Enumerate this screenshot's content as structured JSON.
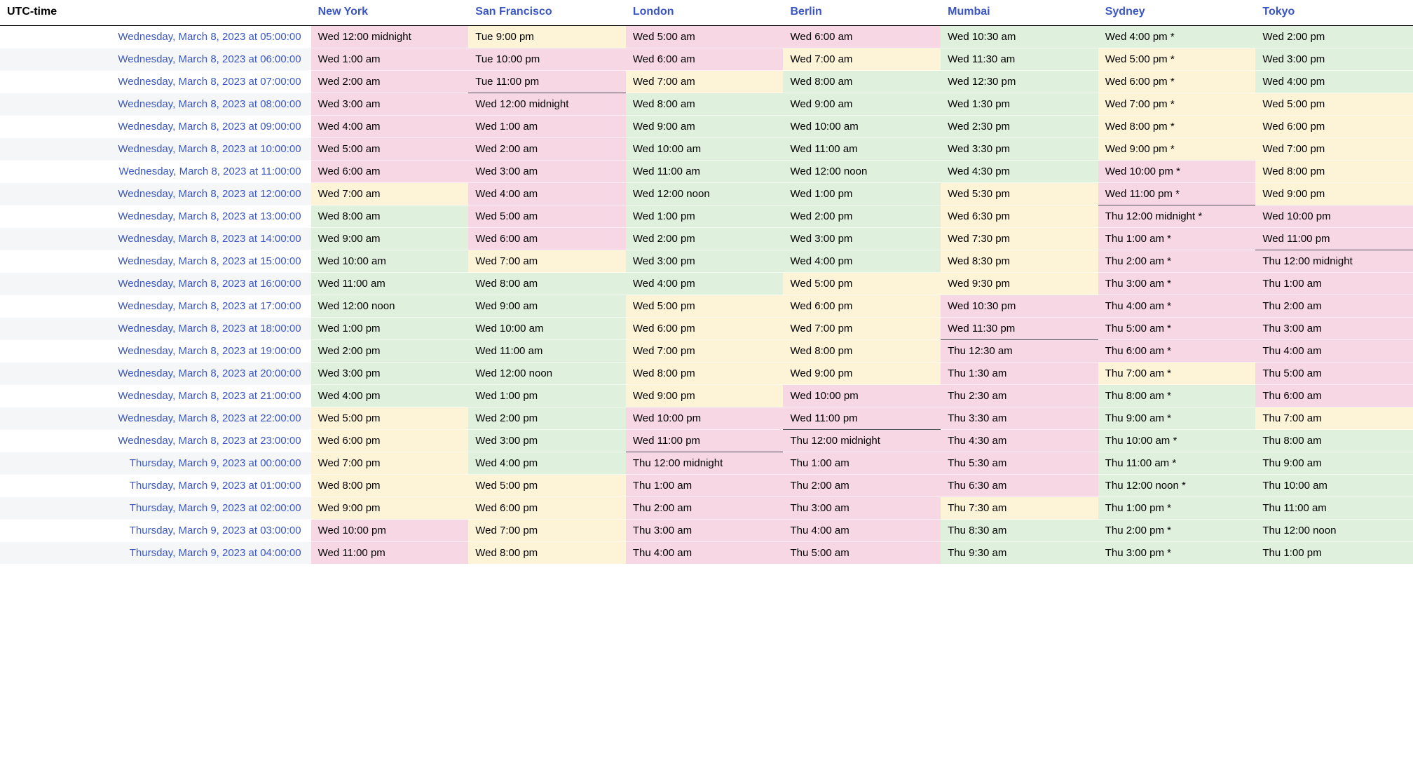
{
  "colors": {
    "pink": "#f7d7e3",
    "cream": "#fdf3d6",
    "green": "#dff0dc",
    "utc_stripe": "#f5f6f8",
    "link": "#3a56c4",
    "header_border": "#000000"
  },
  "header": {
    "utc_label": "UTC-time",
    "cities": [
      "New York",
      "San Francisco",
      "London",
      "Berlin",
      "Mumbai",
      "Sydney",
      "Tokyo"
    ]
  },
  "rows": [
    {
      "utc": "Wednesday, March 8, 2023 at 05:00:00",
      "cells": [
        {
          "text": "Wed 12:00 midnight",
          "color": "pink",
          "midline": true
        },
        {
          "text": "Tue 9:00 pm",
          "color": "cream"
        },
        {
          "text": "Wed 5:00 am",
          "color": "pink"
        },
        {
          "text": "Wed 6:00 am",
          "color": "pink"
        },
        {
          "text": "Wed 10:30 am",
          "color": "green"
        },
        {
          "text": "Wed 4:00 pm *",
          "color": "green"
        },
        {
          "text": "Wed 2:00 pm",
          "color": "green"
        }
      ]
    },
    {
      "utc": "Wednesday, March 8, 2023 at 06:00:00",
      "cells": [
        {
          "text": "Wed 1:00 am",
          "color": "pink"
        },
        {
          "text": "Tue 10:00 pm",
          "color": "pink"
        },
        {
          "text": "Wed 6:00 am",
          "color": "pink"
        },
        {
          "text": "Wed 7:00 am",
          "color": "cream"
        },
        {
          "text": "Wed 11:30 am",
          "color": "green"
        },
        {
          "text": "Wed 5:00 pm *",
          "color": "cream"
        },
        {
          "text": "Wed 3:00 pm",
          "color": "green"
        }
      ]
    },
    {
      "utc": "Wednesday, March 8, 2023 at 07:00:00",
      "cells": [
        {
          "text": "Wed 2:00 am",
          "color": "pink"
        },
        {
          "text": "Tue 11:00 pm",
          "color": "pink"
        },
        {
          "text": "Wed 7:00 am",
          "color": "cream"
        },
        {
          "text": "Wed 8:00 am",
          "color": "green"
        },
        {
          "text": "Wed 12:30 pm",
          "color": "green"
        },
        {
          "text": "Wed 6:00 pm *",
          "color": "cream"
        },
        {
          "text": "Wed 4:00 pm",
          "color": "green"
        }
      ]
    },
    {
      "utc": "Wednesday, March 8, 2023 at 08:00:00",
      "cells": [
        {
          "text": "Wed 3:00 am",
          "color": "pink"
        },
        {
          "text": "Wed 12:00 midnight",
          "color": "pink",
          "midline": true
        },
        {
          "text": "Wed 8:00 am",
          "color": "green"
        },
        {
          "text": "Wed 9:00 am",
          "color": "green"
        },
        {
          "text": "Wed 1:30 pm",
          "color": "green"
        },
        {
          "text": "Wed 7:00 pm *",
          "color": "cream"
        },
        {
          "text": "Wed 5:00 pm",
          "color": "cream"
        }
      ]
    },
    {
      "utc": "Wednesday, March 8, 2023 at 09:00:00",
      "cells": [
        {
          "text": "Wed 4:00 am",
          "color": "pink"
        },
        {
          "text": "Wed 1:00 am",
          "color": "pink"
        },
        {
          "text": "Wed 9:00 am",
          "color": "green"
        },
        {
          "text": "Wed 10:00 am",
          "color": "green"
        },
        {
          "text": "Wed 2:30 pm",
          "color": "green"
        },
        {
          "text": "Wed 8:00 pm *",
          "color": "cream"
        },
        {
          "text": "Wed 6:00 pm",
          "color": "cream"
        }
      ]
    },
    {
      "utc": "Wednesday, March 8, 2023 at 10:00:00",
      "cells": [
        {
          "text": "Wed 5:00 am",
          "color": "pink"
        },
        {
          "text": "Wed 2:00 am",
          "color": "pink"
        },
        {
          "text": "Wed 10:00 am",
          "color": "green"
        },
        {
          "text": "Wed 11:00 am",
          "color": "green"
        },
        {
          "text": "Wed 3:30 pm",
          "color": "green"
        },
        {
          "text": "Wed 9:00 pm *",
          "color": "cream"
        },
        {
          "text": "Wed 7:00 pm",
          "color": "cream"
        }
      ]
    },
    {
      "utc": "Wednesday, March 8, 2023 at 11:00:00",
      "cells": [
        {
          "text": "Wed 6:00 am",
          "color": "pink"
        },
        {
          "text": "Wed 3:00 am",
          "color": "pink"
        },
        {
          "text": "Wed 11:00 am",
          "color": "green"
        },
        {
          "text": "Wed 12:00 noon",
          "color": "green"
        },
        {
          "text": "Wed 4:30 pm",
          "color": "green"
        },
        {
          "text": "Wed 10:00 pm *",
          "color": "pink"
        },
        {
          "text": "Wed 8:00 pm",
          "color": "cream"
        }
      ]
    },
    {
      "utc": "Wednesday, March 8, 2023 at 12:00:00",
      "cells": [
        {
          "text": "Wed 7:00 am",
          "color": "cream"
        },
        {
          "text": "Wed 4:00 am",
          "color": "pink"
        },
        {
          "text": "Wed 12:00 noon",
          "color": "green"
        },
        {
          "text": "Wed 1:00 pm",
          "color": "green"
        },
        {
          "text": "Wed 5:30 pm",
          "color": "cream"
        },
        {
          "text": "Wed 11:00 pm *",
          "color": "pink"
        },
        {
          "text": "Wed 9:00 pm",
          "color": "cream"
        }
      ]
    },
    {
      "utc": "Wednesday, March 8, 2023 at 13:00:00",
      "cells": [
        {
          "text": "Wed 8:00 am",
          "color": "green"
        },
        {
          "text": "Wed 5:00 am",
          "color": "pink"
        },
        {
          "text": "Wed 1:00 pm",
          "color": "green"
        },
        {
          "text": "Wed 2:00 pm",
          "color": "green"
        },
        {
          "text": "Wed 6:30 pm",
          "color": "cream"
        },
        {
          "text": "Thu 12:00 midnight *",
          "color": "pink",
          "midline": true
        },
        {
          "text": "Wed 10:00 pm",
          "color": "pink"
        }
      ]
    },
    {
      "utc": "Wednesday, March 8, 2023 at 14:00:00",
      "cells": [
        {
          "text": "Wed 9:00 am",
          "color": "green"
        },
        {
          "text": "Wed 6:00 am",
          "color": "pink"
        },
        {
          "text": "Wed 2:00 pm",
          "color": "green"
        },
        {
          "text": "Wed 3:00 pm",
          "color": "green"
        },
        {
          "text": "Wed 7:30 pm",
          "color": "cream"
        },
        {
          "text": "Thu 1:00 am *",
          "color": "pink"
        },
        {
          "text": "Wed 11:00 pm",
          "color": "pink"
        }
      ]
    },
    {
      "utc": "Wednesday, March 8, 2023 at 15:00:00",
      "cells": [
        {
          "text": "Wed 10:00 am",
          "color": "green"
        },
        {
          "text": "Wed 7:00 am",
          "color": "cream"
        },
        {
          "text": "Wed 3:00 pm",
          "color": "green"
        },
        {
          "text": "Wed 4:00 pm",
          "color": "green"
        },
        {
          "text": "Wed 8:30 pm",
          "color": "cream"
        },
        {
          "text": "Thu 2:00 am *",
          "color": "pink"
        },
        {
          "text": "Thu 12:00 midnight",
          "color": "pink",
          "midline": true
        }
      ]
    },
    {
      "utc": "Wednesday, March 8, 2023 at 16:00:00",
      "cells": [
        {
          "text": "Wed 11:00 am",
          "color": "green"
        },
        {
          "text": "Wed 8:00 am",
          "color": "green"
        },
        {
          "text": "Wed 4:00 pm",
          "color": "green"
        },
        {
          "text": "Wed 5:00 pm",
          "color": "cream"
        },
        {
          "text": "Wed 9:30 pm",
          "color": "cream"
        },
        {
          "text": "Thu 3:00 am *",
          "color": "pink"
        },
        {
          "text": "Thu 1:00 am",
          "color": "pink"
        }
      ]
    },
    {
      "utc": "Wednesday, March 8, 2023 at 17:00:00",
      "cells": [
        {
          "text": "Wed 12:00 noon",
          "color": "green"
        },
        {
          "text": "Wed 9:00 am",
          "color": "green"
        },
        {
          "text": "Wed 5:00 pm",
          "color": "cream"
        },
        {
          "text": "Wed 6:00 pm",
          "color": "cream"
        },
        {
          "text": "Wed 10:30 pm",
          "color": "pink"
        },
        {
          "text": "Thu 4:00 am *",
          "color": "pink"
        },
        {
          "text": "Thu 2:00 am",
          "color": "pink"
        }
      ]
    },
    {
      "utc": "Wednesday, March 8, 2023 at 18:00:00",
      "cells": [
        {
          "text": "Wed 1:00 pm",
          "color": "green"
        },
        {
          "text": "Wed 10:00 am",
          "color": "green"
        },
        {
          "text": "Wed 6:00 pm",
          "color": "cream"
        },
        {
          "text": "Wed 7:00 pm",
          "color": "cream"
        },
        {
          "text": "Wed 11:30 pm",
          "color": "pink"
        },
        {
          "text": "Thu 5:00 am *",
          "color": "pink"
        },
        {
          "text": "Thu 3:00 am",
          "color": "pink"
        }
      ]
    },
    {
      "utc": "Wednesday, March 8, 2023 at 19:00:00",
      "cells": [
        {
          "text": "Wed 2:00 pm",
          "color": "green"
        },
        {
          "text": "Wed 11:00 am",
          "color": "green"
        },
        {
          "text": "Wed 7:00 pm",
          "color": "cream"
        },
        {
          "text": "Wed 8:00 pm",
          "color": "cream"
        },
        {
          "text": "Thu 12:30 am",
          "color": "pink",
          "midline": true
        },
        {
          "text": "Thu 6:00 am *",
          "color": "pink"
        },
        {
          "text": "Thu 4:00 am",
          "color": "pink"
        }
      ]
    },
    {
      "utc": "Wednesday, March 8, 2023 at 20:00:00",
      "cells": [
        {
          "text": "Wed 3:00 pm",
          "color": "green"
        },
        {
          "text": "Wed 12:00 noon",
          "color": "green"
        },
        {
          "text": "Wed 8:00 pm",
          "color": "cream"
        },
        {
          "text": "Wed 9:00 pm",
          "color": "cream"
        },
        {
          "text": "Thu 1:30 am",
          "color": "pink"
        },
        {
          "text": "Thu 7:00 am *",
          "color": "cream"
        },
        {
          "text": "Thu 5:00 am",
          "color": "pink"
        }
      ]
    },
    {
      "utc": "Wednesday, March 8, 2023 at 21:00:00",
      "cells": [
        {
          "text": "Wed 4:00 pm",
          "color": "green"
        },
        {
          "text": "Wed 1:00 pm",
          "color": "green"
        },
        {
          "text": "Wed 9:00 pm",
          "color": "cream"
        },
        {
          "text": "Wed 10:00 pm",
          "color": "pink"
        },
        {
          "text": "Thu 2:30 am",
          "color": "pink"
        },
        {
          "text": "Thu 8:00 am *",
          "color": "green"
        },
        {
          "text": "Thu 6:00 am",
          "color": "pink"
        }
      ]
    },
    {
      "utc": "Wednesday, March 8, 2023 at 22:00:00",
      "cells": [
        {
          "text": "Wed 5:00 pm",
          "color": "cream"
        },
        {
          "text": "Wed 2:00 pm",
          "color": "green"
        },
        {
          "text": "Wed 10:00 pm",
          "color": "pink"
        },
        {
          "text": "Wed 11:00 pm",
          "color": "pink"
        },
        {
          "text": "Thu 3:30 am",
          "color": "pink"
        },
        {
          "text": "Thu 9:00 am *",
          "color": "green"
        },
        {
          "text": "Thu 7:00 am",
          "color": "cream"
        }
      ]
    },
    {
      "utc": "Wednesday, March 8, 2023 at 23:00:00",
      "cells": [
        {
          "text": "Wed 6:00 pm",
          "color": "cream"
        },
        {
          "text": "Wed 3:00 pm",
          "color": "green"
        },
        {
          "text": "Wed 11:00 pm",
          "color": "pink"
        },
        {
          "text": "Thu 12:00 midnight",
          "color": "pink",
          "midline": true
        },
        {
          "text": "Thu 4:30 am",
          "color": "pink"
        },
        {
          "text": "Thu 10:00 am *",
          "color": "green"
        },
        {
          "text": "Thu 8:00 am",
          "color": "green"
        }
      ]
    },
    {
      "utc": "Thursday, March 9, 2023 at 00:00:00",
      "cells": [
        {
          "text": "Wed 7:00 pm",
          "color": "cream"
        },
        {
          "text": "Wed 4:00 pm",
          "color": "green"
        },
        {
          "text": "Thu 12:00 midnight",
          "color": "pink",
          "midline": true
        },
        {
          "text": "Thu 1:00 am",
          "color": "pink"
        },
        {
          "text": "Thu 5:30 am",
          "color": "pink"
        },
        {
          "text": "Thu 11:00 am *",
          "color": "green"
        },
        {
          "text": "Thu 9:00 am",
          "color": "green"
        }
      ]
    },
    {
      "utc": "Thursday, March 9, 2023 at 01:00:00",
      "cells": [
        {
          "text": "Wed 8:00 pm",
          "color": "cream"
        },
        {
          "text": "Wed 5:00 pm",
          "color": "cream"
        },
        {
          "text": "Thu 1:00 am",
          "color": "pink"
        },
        {
          "text": "Thu 2:00 am",
          "color": "pink"
        },
        {
          "text": "Thu 6:30 am",
          "color": "pink"
        },
        {
          "text": "Thu 12:00 noon *",
          "color": "green"
        },
        {
          "text": "Thu 10:00 am",
          "color": "green"
        }
      ]
    },
    {
      "utc": "Thursday, March 9, 2023 at 02:00:00",
      "cells": [
        {
          "text": "Wed 9:00 pm",
          "color": "cream"
        },
        {
          "text": "Wed 6:00 pm",
          "color": "cream"
        },
        {
          "text": "Thu 2:00 am",
          "color": "pink"
        },
        {
          "text": "Thu 3:00 am",
          "color": "pink"
        },
        {
          "text": "Thu 7:30 am",
          "color": "cream"
        },
        {
          "text": "Thu 1:00 pm *",
          "color": "green"
        },
        {
          "text": "Thu 11:00 am",
          "color": "green"
        }
      ]
    },
    {
      "utc": "Thursday, March 9, 2023 at 03:00:00",
      "cells": [
        {
          "text": "Wed 10:00 pm",
          "color": "pink"
        },
        {
          "text": "Wed 7:00 pm",
          "color": "cream"
        },
        {
          "text": "Thu 3:00 am",
          "color": "pink"
        },
        {
          "text": "Thu 4:00 am",
          "color": "pink"
        },
        {
          "text": "Thu 8:30 am",
          "color": "green"
        },
        {
          "text": "Thu 2:00 pm *",
          "color": "green"
        },
        {
          "text": "Thu 12:00 noon",
          "color": "green"
        }
      ]
    },
    {
      "utc": "Thursday, March 9, 2023 at 04:00:00",
      "cells": [
        {
          "text": "Wed 11:00 pm",
          "color": "pink"
        },
        {
          "text": "Wed 8:00 pm",
          "color": "cream"
        },
        {
          "text": "Thu 4:00 am",
          "color": "pink"
        },
        {
          "text": "Thu 5:00 am",
          "color": "pink"
        },
        {
          "text": "Thu 9:30 am",
          "color": "green"
        },
        {
          "text": "Thu 3:00 pm *",
          "color": "green"
        },
        {
          "text": "Thu 1:00 pm",
          "color": "green"
        }
      ]
    }
  ]
}
